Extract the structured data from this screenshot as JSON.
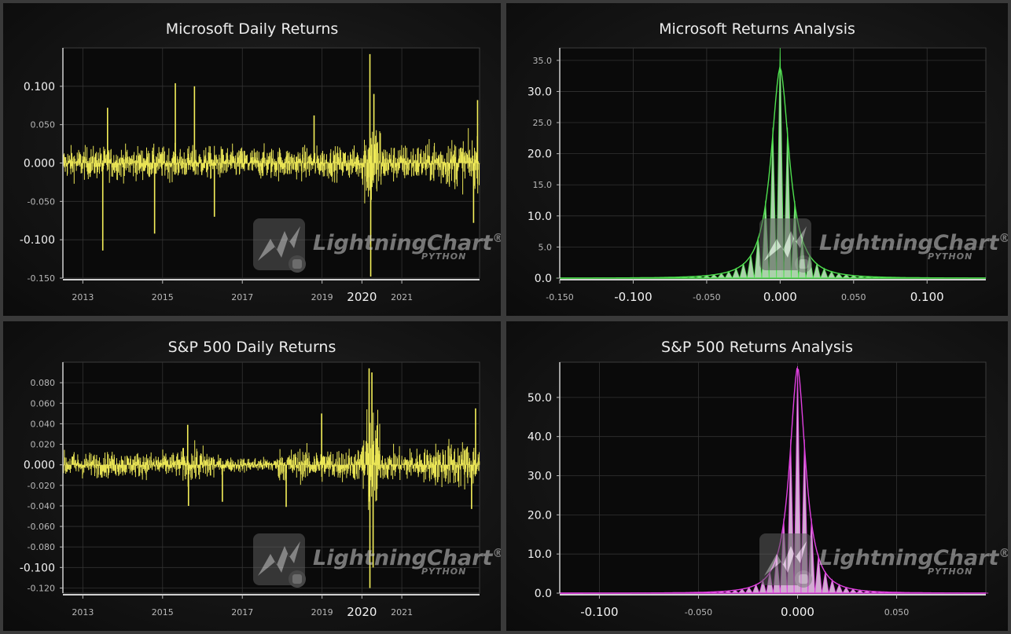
{
  "watermark": {
    "brand": "LightningChart",
    "reg": "®",
    "sub": "PYTHON"
  },
  "chart_data": [
    {
      "id": "msft-returns",
      "type": "line",
      "title": "Microsoft Daily Returns",
      "xlabel": "",
      "ylabel": "",
      "xlim": [
        2012.5,
        2022.95
      ],
      "ylim": [
        -0.15,
        0.15
      ],
      "x_ticks": [
        "2013",
        "2015",
        "2017",
        "2019",
        "2020",
        "2021"
      ],
      "x_tick_values": [
        2013,
        2015,
        2017,
        2019,
        2020,
        2021
      ],
      "y_ticks": [
        "0.100",
        "0.050",
        "0.000",
        "-0.050",
        "-0.100",
        "-0.150"
      ],
      "y_tick_values": [
        0.1,
        0.05,
        0.0,
        -0.05,
        -0.1,
        -0.15
      ],
      "y_tick_major": [
        "0.100",
        "0.000",
        "-0.100"
      ],
      "series": [
        {
          "color": "#f5f05a",
          "volatility_regimes": [
            {
              "from": 2012.5,
              "to": 2020.0,
              "std": 0.0145
            },
            {
              "from": 2020.0,
              "to": 2020.5,
              "std": 0.04
            },
            {
              "from": 2020.5,
              "to": 2021.8,
              "std": 0.017
            },
            {
              "from": 2021.8,
              "to": 2022.95,
              "std": 0.022
            }
          ],
          "spikes": [
            {
              "x": 2013.5,
              "y": -0.114
            },
            {
              "x": 2013.62,
              "y": 0.072
            },
            {
              "x": 2014.8,
              "y": -0.092
            },
            {
              "x": 2015.32,
              "y": 0.104
            },
            {
              "x": 2015.8,
              "y": 0.1
            },
            {
              "x": 2016.3,
              "y": -0.07
            },
            {
              "x": 2018.8,
              "y": 0.062
            },
            {
              "x": 2020.2,
              "y": 0.142
            },
            {
              "x": 2020.22,
              "y": -0.148
            },
            {
              "x": 2020.3,
              "y": 0.09
            },
            {
              "x": 2022.9,
              "y": 0.082
            },
            {
              "x": 2022.8,
              "y": -0.078
            }
          ]
        }
      ]
    },
    {
      "id": "msft-analysis",
      "type": "area",
      "title": "Microsoft Returns Analysis",
      "xlabel": "",
      "ylabel": "",
      "xlim": [
        -0.15,
        0.14
      ],
      "ylim": [
        0,
        37
      ],
      "x_ticks": [
        "-0.150",
        "-0.100",
        "-0.050",
        "0.000",
        "0.050",
        "0.100"
      ],
      "x_tick_values": [
        -0.15,
        -0.1,
        -0.05,
        0.0,
        0.05,
        0.1
      ],
      "x_tick_major": [
        "-0.100",
        "0.000",
        "0.100"
      ],
      "y_ticks": [
        "35.0",
        "30.0",
        "25.0",
        "20.0",
        "15.0",
        "10.0",
        "5.0",
        "0.0"
      ],
      "y_tick_values": [
        35,
        30,
        25,
        20,
        15,
        10,
        5,
        0
      ],
      "y_tick_major": [
        "30.0",
        "20.0",
        "10.0",
        "0.0"
      ],
      "series": [
        {
          "color": "#4ee04e",
          "fill": "#c8f5c8",
          "center": 0.0,
          "peak": 34,
          "spike_peak": 37,
          "scale": 0.0105,
          "bin_width": 0.005
        }
      ]
    },
    {
      "id": "sp500-returns",
      "type": "line",
      "title": "S&P 500 Daily Returns",
      "xlabel": "",
      "ylabel": "",
      "xlim": [
        2012.5,
        2022.95
      ],
      "ylim": [
        -0.125,
        0.1
      ],
      "x_ticks": [
        "2013",
        "2015",
        "2017",
        "2019",
        "2020",
        "2021"
      ],
      "x_tick_values": [
        2013,
        2015,
        2017,
        2019,
        2020,
        2021
      ],
      "y_ticks": [
        "0.080",
        "0.060",
        "0.040",
        "0.020",
        "0.000",
        "-0.020",
        "-0.040",
        "-0.060",
        "-0.080",
        "-0.100",
        "-0.120"
      ],
      "y_tick_values": [
        0.08,
        0.06,
        0.04,
        0.02,
        0.0,
        -0.02,
        -0.04,
        -0.06,
        -0.08,
        -0.1,
        -0.12
      ],
      "y_tick_major": [
        "0.000",
        "-0.100"
      ],
      "series": [
        {
          "color": "#f5f05a",
          "volatility_regimes": [
            {
              "from": 2012.5,
              "to": 2015.5,
              "std": 0.0085
            },
            {
              "from": 2015.5,
              "to": 2016.3,
              "std": 0.012
            },
            {
              "from": 2016.3,
              "to": 2017.9,
              "std": 0.005
            },
            {
              "from": 2017.9,
              "to": 2020.0,
              "std": 0.011
            },
            {
              "from": 2020.0,
              "to": 2020.45,
              "std": 0.035
            },
            {
              "from": 2020.45,
              "to": 2021.8,
              "std": 0.011
            },
            {
              "from": 2021.8,
              "to": 2022.95,
              "std": 0.016
            }
          ],
          "spikes": [
            {
              "x": 2015.63,
              "y": 0.039
            },
            {
              "x": 2015.65,
              "y": -0.04
            },
            {
              "x": 2016.5,
              "y": -0.036
            },
            {
              "x": 2018.1,
              "y": -0.041
            },
            {
              "x": 2018.99,
              "y": 0.05
            },
            {
              "x": 2020.18,
              "y": 0.094
            },
            {
              "x": 2020.2,
              "y": -0.12
            },
            {
              "x": 2020.25,
              "y": 0.09
            },
            {
              "x": 2020.28,
              "y": -0.1
            },
            {
              "x": 2022.85,
              "y": 0.055
            },
            {
              "x": 2022.75,
              "y": -0.043
            }
          ]
        }
      ]
    },
    {
      "id": "sp500-analysis",
      "type": "area",
      "title": "S&P 500 Returns Analysis",
      "xlabel": "",
      "ylabel": "",
      "xlim": [
        -0.12,
        0.095
      ],
      "ylim": [
        0,
        59
      ],
      "x_ticks": [
        "-0.100",
        "-0.050",
        "0.000",
        "0.050"
      ],
      "x_tick_values": [
        -0.1,
        -0.05,
        0.0,
        0.05
      ],
      "x_tick_major": [
        "-0.100",
        "0.000"
      ],
      "y_ticks": [
        "50.0",
        "40.0",
        "30.0",
        "20.0",
        "10.0",
        "0.0"
      ],
      "y_tick_values": [
        50,
        40,
        30,
        20,
        10,
        0
      ],
      "y_tick_major": [
        "50.0",
        "40.0",
        "30.0",
        "20.0",
        "10.0",
        "0.0"
      ],
      "series": [
        {
          "color": "#e040e0",
          "fill": "#f5c8f5",
          "center": 0.0,
          "peak": 58,
          "spike_peak": 58,
          "scale": 0.0068,
          "bin_width": 0.0035
        }
      ]
    }
  ]
}
